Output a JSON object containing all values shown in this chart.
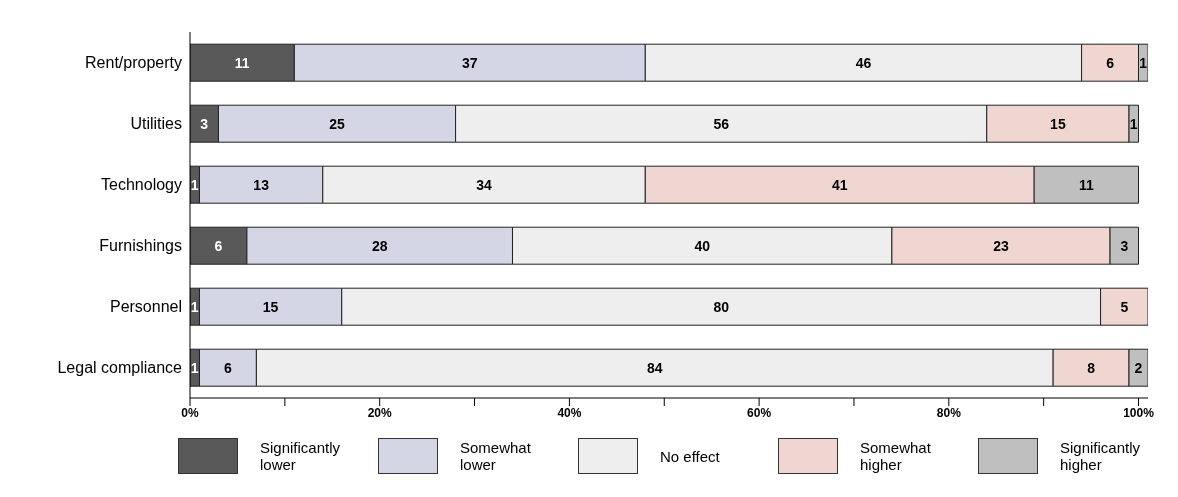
{
  "chart_data": {
    "type": "bar",
    "orientation": "horizontal",
    "stacked": true,
    "data_labels": true,
    "legend": "bottom",
    "categories": [
      "Rent/property",
      "Utilities",
      "Technology",
      "Furnishings",
      "Personnel",
      "Legal compliance"
    ],
    "series": [
      {
        "name": "Significantly lower",
        "color": "#595959",
        "values": [
          11,
          3,
          1,
          6,
          1,
          1
        ]
      },
      {
        "name": "Somewhat lower",
        "color": "#d4d6e6",
        "values": [
          37,
          25,
          13,
          28,
          15,
          6
        ]
      },
      {
        "name": "No effect",
        "color": "#eeeeee",
        "values": [
          46,
          56,
          34,
          40,
          80,
          84
        ]
      },
      {
        "name": "Somewhat higher",
        "color": "#f0d6d0",
        "values": [
          6,
          15,
          41,
          23,
          5,
          8
        ]
      },
      {
        "name": "Significantly higher",
        "color": "#bfbfbf",
        "values": [
          1,
          1,
          11,
          3,
          null,
          2
        ]
      }
    ],
    "xlim": [
      0,
      101
    ],
    "xticks": [
      {
        "value": 0,
        "label": "0%"
      },
      {
        "value": 10,
        "label": null
      },
      {
        "value": 20,
        "label": "20%"
      },
      {
        "value": 30,
        "label": null
      },
      {
        "value": 40,
        "label": "40%"
      },
      {
        "value": 50,
        "label": null
      },
      {
        "value": 60,
        "label": "60%"
      },
      {
        "value": 70,
        "label": null
      },
      {
        "value": 80,
        "label": "80%"
      },
      {
        "value": 90,
        "label": null
      },
      {
        "value": 100,
        "label": "100%"
      }
    ]
  }
}
